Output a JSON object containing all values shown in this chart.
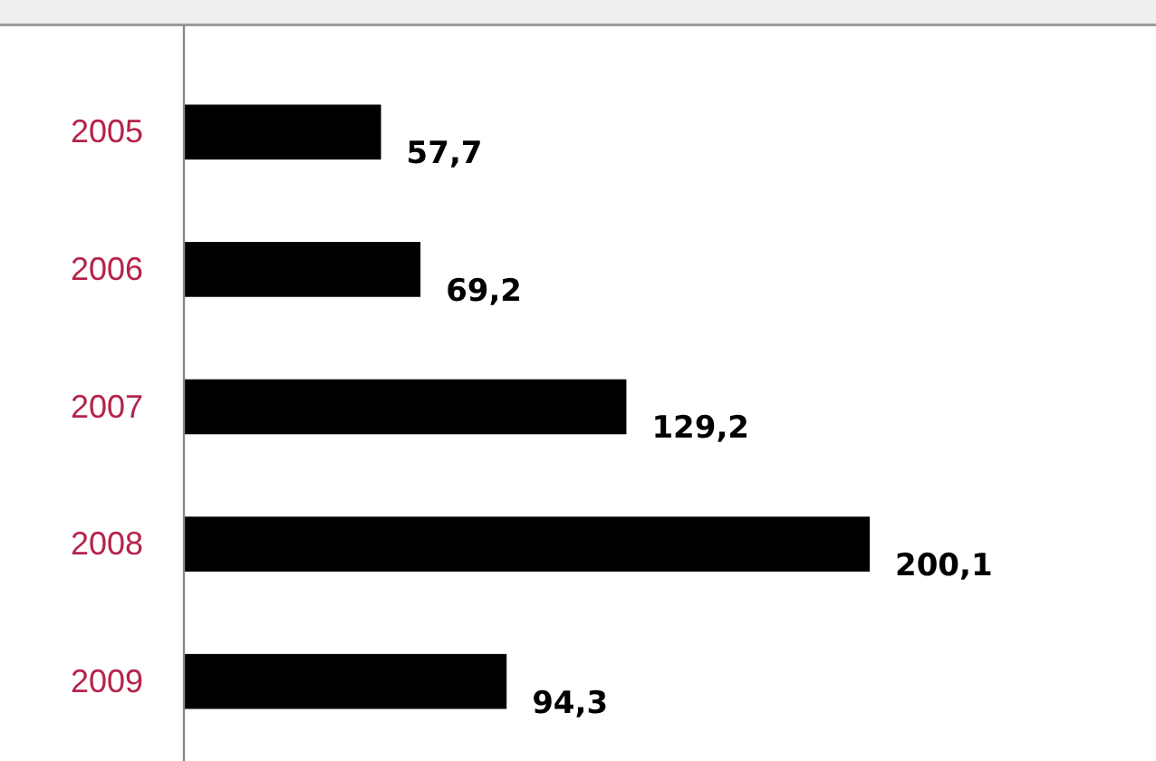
{
  "chart_data": {
    "type": "bar",
    "orientation": "horizontal",
    "categories": [
      "2005",
      "2006",
      "2007",
      "2008",
      "2009"
    ],
    "values": [
      57.7,
      69.2,
      129.2,
      200.1,
      94.3
    ],
    "value_labels": [
      "57,7",
      "69,2",
      "129,2",
      "200,1",
      "94,3"
    ],
    "color": "#000000"
  }
}
